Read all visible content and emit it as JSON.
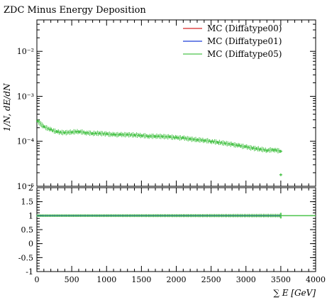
{
  "chart_data": [
    {
      "type": "scatter",
      "title": "ZDC Minus Energy Deposition",
      "ylabel": "1/N, dE/dN",
      "yscale": "log",
      "ylim": [
        1e-05,
        0.05
      ],
      "xlim": [
        0,
        4000
      ],
      "y_ticks": [
        {
          "value": 1e-05,
          "label": "10⁻⁵"
        },
        {
          "value": 0.0001,
          "label": "10⁻⁴"
        },
        {
          "value": 0.001,
          "label": "10⁻³"
        },
        {
          "value": 0.01,
          "label": "10⁻²"
        }
      ],
      "legend_position": "top-right",
      "series": [
        {
          "name": "MC (Diffatype00)",
          "color": "#d62728",
          "x": [],
          "y": []
        },
        {
          "name": "MC (Diffatype01)",
          "color": "#1f3fd6",
          "x": [],
          "y": []
        },
        {
          "name": "MC (Diffatype05)",
          "color": "#4cc44c",
          "x": [
            10,
            100,
            200,
            300,
            400,
            500,
            600,
            700,
            800,
            900,
            1000,
            1100,
            1200,
            1300,
            1400,
            1500,
            1600,
            1700,
            1800,
            1900,
            2000,
            2100,
            2200,
            2300,
            2400,
            2500,
            2600,
            2700,
            2800,
            2900,
            3000,
            3100,
            3200,
            3300,
            3400,
            3500,
            3500
          ],
          "y": [
            0.00028,
            0.00021,
            0.00018,
            0.00016,
            0.000155,
            0.00016,
            0.000165,
            0.000155,
            0.00015,
            0.00015,
            0.000145,
            0.00014,
            0.00014,
            0.00014,
            0.000138,
            0.000135,
            0.00013,
            0.00013,
            0.000128,
            0.000125,
            0.00012,
            0.000118,
            0.000112,
            0.000108,
            0.000105,
            0.0001,
            9.5e-05,
            9e-05,
            8.5e-05,
            8e-05,
            7.5e-05,
            7e-05,
            6.7e-05,
            6.3e-05,
            6.5e-05,
            6e-05,
            1.8e-05
          ]
        }
      ]
    },
    {
      "type": "scatter",
      "ylabel": "",
      "xlabel": "∑ E [GeV]",
      "xlim": [
        0,
        4000
      ],
      "ylim": [
        -1,
        2
      ],
      "x_ticks": [
        0,
        500,
        1000,
        1500,
        2000,
        2500,
        3000,
        3500,
        4000
      ],
      "y_ticks": [
        -1,
        -0.5,
        0,
        0.5,
        1,
        1.5,
        2
      ],
      "series": [
        {
          "name": "MC (Diffatype05)",
          "color": "#4cc44c",
          "x": [
            0,
            3500
          ],
          "y": [
            1,
            1
          ],
          "band": [
            0.96,
            1.04
          ],
          "band_end": [
            0.93,
            1.07
          ]
        },
        {
          "name": "MC (Diffatype00)",
          "color": "#d62728",
          "x": [
            0,
            3500
          ],
          "y": [
            1,
            1
          ]
        },
        {
          "name": "MC (Diffatype01)",
          "color": "#1f3fd6",
          "x": [
            0,
            3500
          ],
          "y": [
            1,
            1
          ]
        }
      ]
    }
  ]
}
